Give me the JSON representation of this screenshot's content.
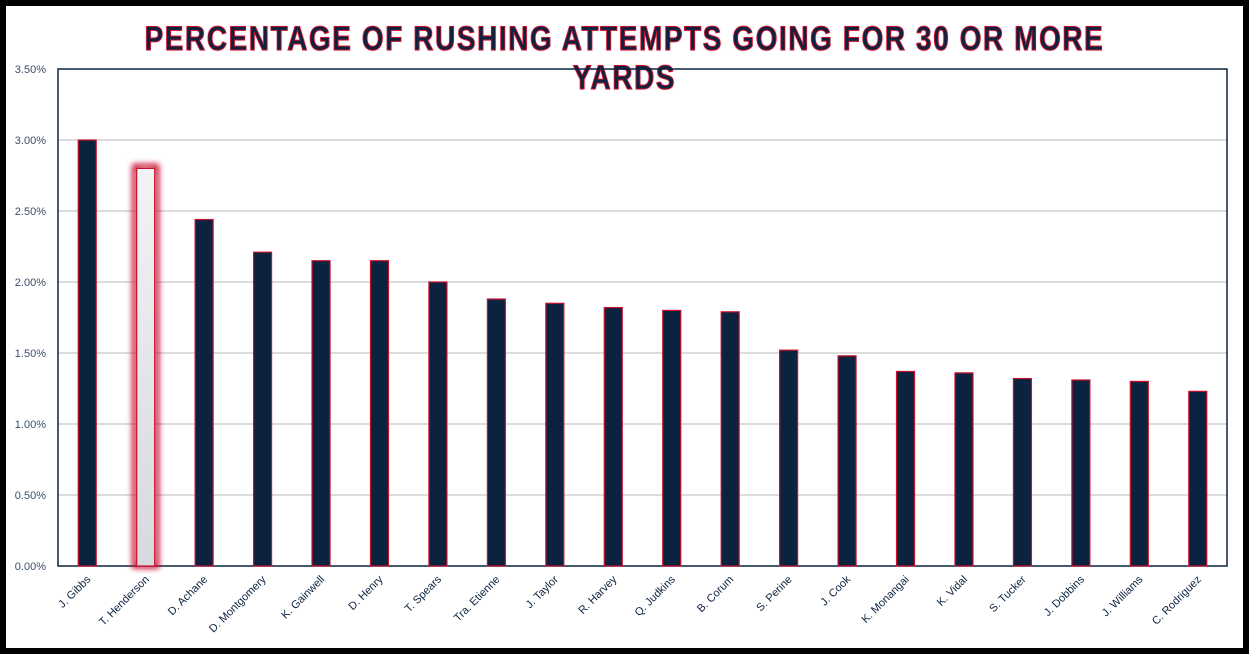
{
  "chart_data": {
    "type": "bar",
    "title": "PERCENTAGE OF RUSHING ATTEMPTS GOING FOR 30 OR MORE YARDS",
    "xlabel": "",
    "ylabel": "",
    "ylim": [
      0,
      3.5
    ],
    "yticks": [
      "0.00%",
      "0.50%",
      "1.00%",
      "1.50%",
      "2.00%",
      "2.50%",
      "3.00%",
      "3.50%"
    ],
    "grid": true,
    "highlight": "T. Henderson",
    "categories": [
      "J. Gibbs",
      "T. Henderson",
      "D. Achane",
      "D. Montgomery",
      "K. Gainwell",
      "D. Henry",
      "T. Spears",
      "Tra. Etienne",
      "J. Taylor",
      "R. Harvey",
      "Q. Judkins",
      "B. Corum",
      "S. Perine",
      "J. Cook",
      "K. Monangai",
      "K. Vidal",
      "S. Tucker",
      "J. Dobbins",
      "J. Williams",
      "C. Rodriguez"
    ],
    "values": [
      3.0,
      2.8,
      2.44,
      2.21,
      2.15,
      2.15,
      2.0,
      1.88,
      1.85,
      1.82,
      1.8,
      1.79,
      1.52,
      1.48,
      1.37,
      1.36,
      1.32,
      1.31,
      1.3,
      1.23
    ],
    "colors": {
      "bar": "#0c2340",
      "outline": "#c8102e",
      "highlight": "#e9ecef",
      "grid": "#c8c8c8",
      "axis": "#0c2340"
    }
  }
}
